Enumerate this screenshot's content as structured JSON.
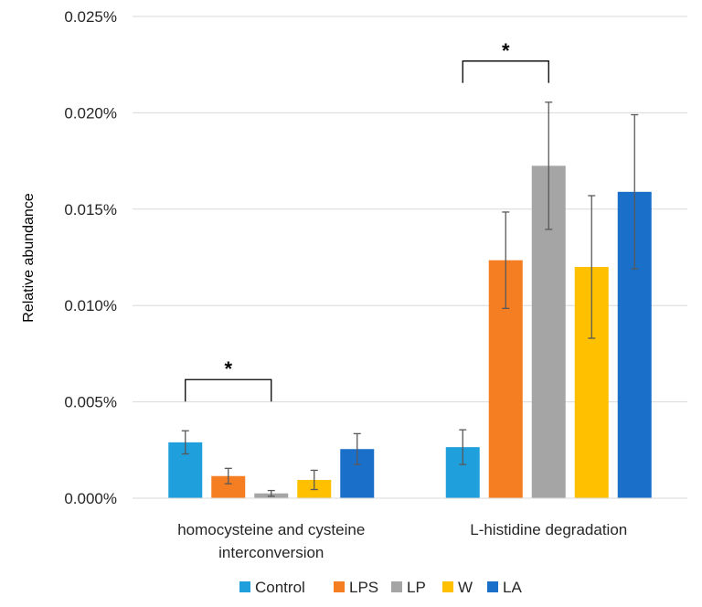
{
  "chart_data": {
    "type": "bar",
    "ylabel": "Relative abundance",
    "ylim": [
      0,
      0.025
    ],
    "yticks": [
      "0.000%",
      "0.005%",
      "0.010%",
      "0.015%",
      "0.020%",
      "0.025%"
    ],
    "grid": true,
    "legend_position": "bottom",
    "categories": [
      [
        "homocysteine and cysteine",
        "interconversion"
      ],
      [
        "L-histidine degradation"
      ]
    ],
    "series": [
      {
        "name": "Control",
        "color": "#1f9fdb",
        "values": [
          0.0029,
          0.00265
        ],
        "errors": [
          0.0006,
          0.0009
        ]
      },
      {
        "name": "LPS",
        "color": "#f57e22",
        "values": [
          0.00115,
          0.01235
        ],
        "errors": [
          0.0004,
          0.0025
        ]
      },
      {
        "name": "LP",
        "color": "#a5a5a5",
        "values": [
          0.00025,
          0.01725
        ],
        "errors": [
          0.00015,
          0.0033
        ]
      },
      {
        "name": "W",
        "color": "#ffc000",
        "values": [
          0.00095,
          0.012
        ],
        "errors": [
          0.0005,
          0.0037
        ]
      },
      {
        "name": "LA",
        "color": "#1a70c8",
        "values": [
          0.00255,
          0.0159
        ],
        "errors": [
          0.0008,
          0.004
        ]
      }
    ],
    "significance": [
      {
        "label": "*",
        "category": 0,
        "from_series": 0,
        "to_series": 2
      },
      {
        "label": "*",
        "category": 1,
        "from_series": 0,
        "to_series": 2
      }
    ]
  }
}
